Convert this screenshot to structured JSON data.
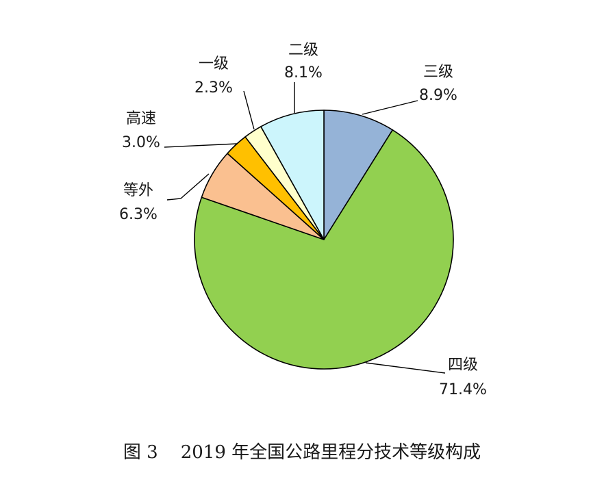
{
  "chart_data": {
    "type": "pie",
    "title": "",
    "slices": [
      {
        "name": "三级",
        "value": 8.9,
        "label": "8.9%",
        "color": "#95b3d7"
      },
      {
        "name": "四级",
        "value": 71.4,
        "label": "71.4%",
        "color": "#92d050"
      },
      {
        "name": "等外",
        "value": 6.3,
        "label": "6.3%",
        "color": "#fac090"
      },
      {
        "name": "高速",
        "value": 3.0,
        "label": "3.0%",
        "color": "#ffc000"
      },
      {
        "name": "一级",
        "value": 2.3,
        "label": "2.3%",
        "color": "#ffffcc"
      },
      {
        "name": "二级",
        "value": 8.1,
        "label": "8.1%",
        "color": "#ccf5fc"
      }
    ],
    "start": "12 o'clock",
    "direction": "clockwise",
    "border_color": "#000000"
  },
  "caption": {
    "figure_number": "图 3",
    "text": "2019 年全国公路里程分技术等级构成"
  }
}
